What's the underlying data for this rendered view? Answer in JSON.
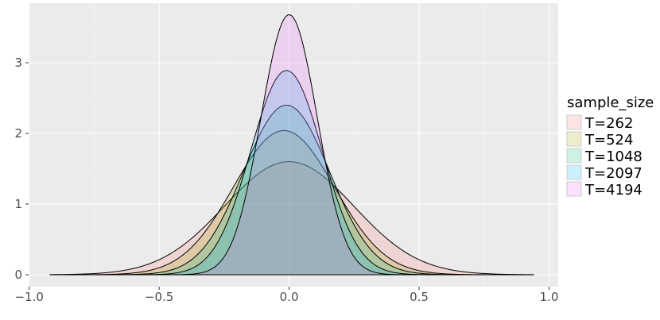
{
  "chart_data": {
    "type": "area",
    "title": "",
    "xlabel": "",
    "ylabel": "",
    "xlim": [
      -1.0,
      1.0
    ],
    "ylim": [
      0,
      3.7
    ],
    "x_ticks": [
      "-1.0",
      "-0.5",
      "0.0",
      "0.5",
      "1.0"
    ],
    "y_ticks": [
      "0",
      "1",
      "2",
      "3"
    ],
    "grid": true,
    "legend": {
      "title": "sample_size",
      "position": "right"
    },
    "x_range_drawn": [
      -0.92,
      0.94
    ],
    "series": [
      {
        "name": "T=262",
        "color": "#F8766D",
        "mean": 0.0,
        "sd": 0.249,
        "peak": 1.6
      },
      {
        "name": "T=524",
        "color": "#A3A500",
        "mean": -0.02,
        "sd": 0.195,
        "peak": 2.04
      },
      {
        "name": "T=1048",
        "color": "#00BF7D",
        "mean": -0.01,
        "sd": 0.166,
        "peak": 2.4
      },
      {
        "name": "T=2097",
        "color": "#00B0F6",
        "mean": -0.01,
        "sd": 0.138,
        "peak": 2.89
      },
      {
        "name": "T=4194",
        "color": "#E76BF3",
        "mean": 0.0,
        "sd": 0.108,
        "peak": 3.68
      }
    ]
  }
}
